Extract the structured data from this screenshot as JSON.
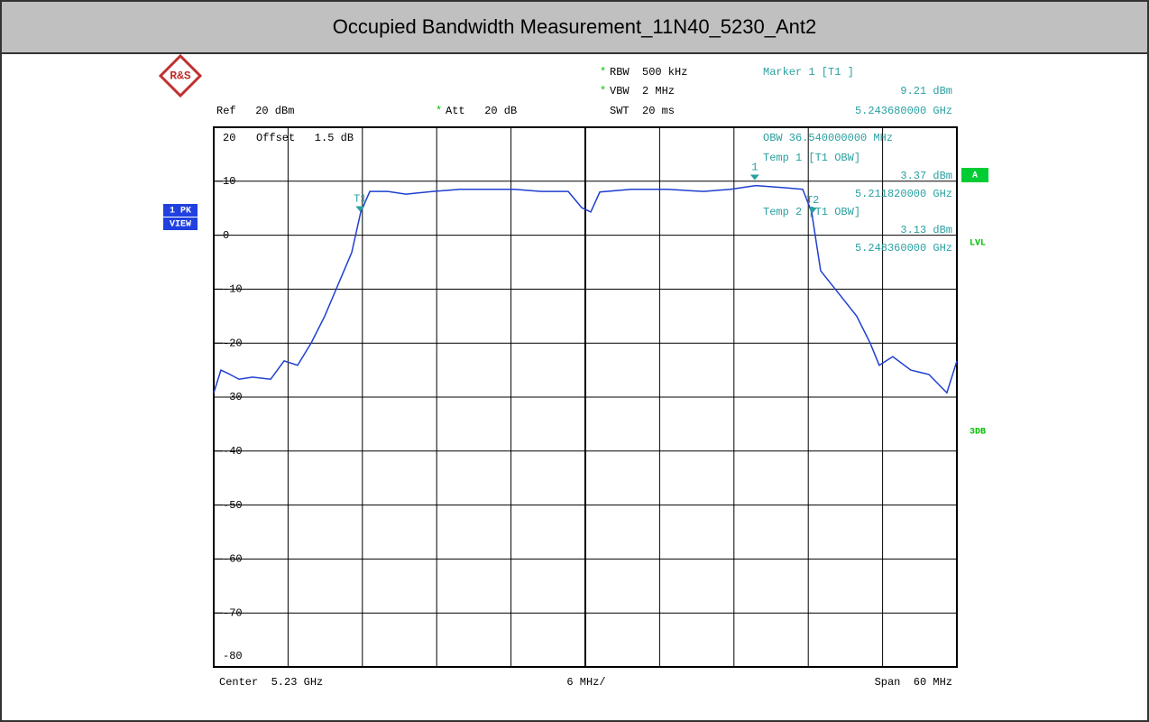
{
  "chart_data": {
    "type": "line",
    "title": "Occupied Bandwidth Measurement_11N40_5230_Ant2",
    "color": "#1f3fd0",
    "xlim": [
      5.2,
      5.26
    ],
    "ylim": [
      -80,
      20
    ],
    "yticks": [
      20,
      10,
      0,
      -10,
      -20,
      -30,
      -40,
      -50,
      -60,
      -70,
      -80
    ],
    "grid": true,
    "x": [
      5.2,
      5.20058,
      5.20131,
      5.20204,
      5.20313,
      5.20459,
      5.20568,
      5.20677,
      5.20786,
      5.20896,
      5.21005,
      5.21114,
      5.21187,
      5.2126,
      5.21405,
      5.21551,
      5.2177,
      5.21988,
      5.22206,
      5.22425,
      5.22643,
      5.22862,
      5.22971,
      5.23044,
      5.23117,
      5.23372,
      5.23663,
      5.23954,
      5.24172,
      5.24376,
      5.24609,
      5.24755,
      5.24827,
      5.249,
      5.25046,
      5.25191,
      5.253,
      5.25373,
      5.25482,
      5.25628,
      5.25774,
      5.25919,
      5.26
    ],
    "values": [
      -29.2,
      -25.0,
      -25.8,
      -26.7,
      -26.3,
      -26.7,
      -23.3,
      -24.1,
      -20.0,
      -15.0,
      -9.1,
      -3.2,
      4.3,
      8.1,
      8.1,
      7.6,
      8.1,
      8.5,
      8.5,
      8.5,
      8.1,
      8.1,
      5.1,
      4.3,
      8.0,
      8.5,
      8.5,
      8.1,
      8.5,
      9.2,
      8.8,
      8.5,
      4.3,
      -6.6,
      -10.8,
      -15.0,
      -20.0,
      -24.1,
      -22.5,
      -25.0,
      -25.8,
      -29.2,
      -23.3
    ],
    "markers": [
      {
        "label": "1",
        "title": "Marker 1 [T1 ]",
        "x": 5.24368,
        "x_label": "5.243680000 GHz",
        "y": 9.21,
        "y_label": "9.21 dBm"
      },
      {
        "label": "T1",
        "title": "Temp 1 [T1 OBW]",
        "x": 5.21182,
        "x_label": "5.211820000 GHz",
        "y": 3.37,
        "y_label": "3.37 dBm"
      },
      {
        "label": "T2",
        "title": "Temp 2 [T1 OBW]",
        "x": 5.24836,
        "x_label": "5.248360000 GHz",
        "y": 3.13,
        "y_label": "3.13 dBm"
      }
    ],
    "obw": "OBW 36.540000000 MHz",
    "ref": "Ref   20 dBm",
    "offset": "Offset   1.5 dB",
    "rbw": "RBW  500 kHz",
    "vbw": "VBW  2 MHz",
    "att": "Att   20 dB",
    "swt": "SWT  20 ms",
    "star": "*",
    "center": "Center  5.23 GHz",
    "per_div": "6 MHz/",
    "span": "Span  60 MHz",
    "left_labels": [
      "1 PK",
      "VIEW"
    ],
    "right_labels": [
      "A",
      "LVL",
      "3DB"
    ]
  }
}
